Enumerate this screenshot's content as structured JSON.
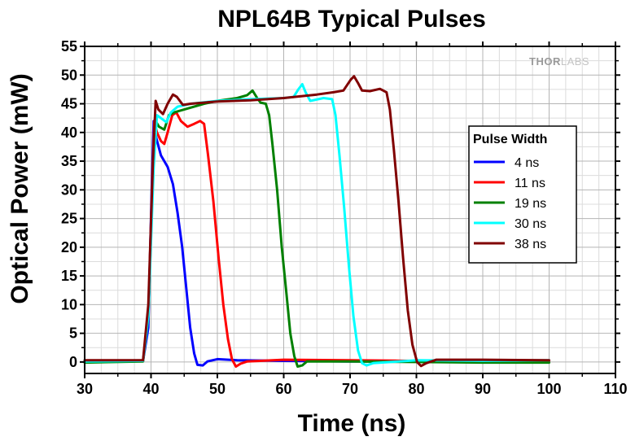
{
  "chart_data": {
    "type": "line",
    "title": "NPL64B Typical Pulses",
    "xlabel": "Time (ns)",
    "ylabel": "Optical Power (mW)",
    "xlim": [
      30,
      110
    ],
    "ylim": [
      -2,
      55
    ],
    "xticks": [
      30,
      40,
      50,
      60,
      70,
      80,
      90,
      100,
      110
    ],
    "yticks": [
      0,
      5,
      10,
      15,
      20,
      25,
      30,
      35,
      40,
      45,
      50,
      55
    ],
    "grid": true,
    "legend": {
      "title": "Pulse Width",
      "placement": "right"
    },
    "watermark": {
      "bold": "THOR",
      "light": "LABS"
    },
    "series": [
      {
        "name": "4 ns",
        "color": "#0000ff",
        "points": [
          [
            30,
            0.1
          ],
          [
            38.8,
            0.2
          ],
          [
            39.6,
            6
          ],
          [
            40.1,
            30
          ],
          [
            40.4,
            42
          ],
          [
            40.8,
            39
          ],
          [
            41.5,
            36
          ],
          [
            42.5,
            34
          ],
          [
            43.3,
            31
          ],
          [
            44,
            26
          ],
          [
            44.7,
            20
          ],
          [
            45.3,
            13
          ],
          [
            45.9,
            6
          ],
          [
            46.5,
            1.5
          ],
          [
            47,
            -0.5
          ],
          [
            47.8,
            -0.6
          ],
          [
            48.5,
            0.1
          ],
          [
            50,
            0.5
          ],
          [
            53,
            0.3
          ],
          [
            60,
            0.2
          ],
          [
            70,
            0.1
          ],
          [
            80,
            0.2
          ],
          [
            90,
            0.2
          ],
          [
            100,
            0.2
          ]
        ]
      },
      {
        "name": "11 ns",
        "color": "#ff0000",
        "points": [
          [
            30,
            0.0
          ],
          [
            38.8,
            0.2
          ],
          [
            39.6,
            8
          ],
          [
            40.2,
            32
          ],
          [
            40.5,
            42
          ],
          [
            40.9,
            40
          ],
          [
            41.5,
            38.5
          ],
          [
            42,
            38
          ],
          [
            42.5,
            40
          ],
          [
            43.2,
            43
          ],
          [
            43.8,
            43.5
          ],
          [
            44.5,
            42
          ],
          [
            45.5,
            41
          ],
          [
            46.5,
            41.5
          ],
          [
            47.4,
            42
          ],
          [
            48,
            41.5
          ],
          [
            48.6,
            36
          ],
          [
            49.4,
            28
          ],
          [
            50.2,
            18
          ],
          [
            50.9,
            10
          ],
          [
            51.6,
            4
          ],
          [
            52.2,
            0.5
          ],
          [
            52.8,
            -0.8
          ],
          [
            53.5,
            -0.3
          ],
          [
            54.5,
            0.1
          ],
          [
            60,
            0.4
          ],
          [
            70,
            0.3
          ],
          [
            80,
            0.2
          ],
          [
            90,
            0.2
          ],
          [
            100,
            0.2
          ]
        ]
      },
      {
        "name": "19 ns",
        "color": "#008000",
        "points": [
          [
            30,
            -0.1
          ],
          [
            38.8,
            0.1
          ],
          [
            39.6,
            8
          ],
          [
            40.3,
            33
          ],
          [
            40.7,
            42
          ],
          [
            41.2,
            41
          ],
          [
            42,
            40.5
          ],
          [
            42.7,
            43
          ],
          [
            43.5,
            43.5
          ],
          [
            45,
            44
          ],
          [
            48,
            45
          ],
          [
            50,
            45.5
          ],
          [
            53,
            46
          ],
          [
            54.5,
            46.5
          ],
          [
            55.3,
            47.3
          ],
          [
            56,
            46
          ],
          [
            56.5,
            45.2
          ],
          [
            57.3,
            45
          ],
          [
            57.8,
            43
          ],
          [
            58.3,
            38
          ],
          [
            59,
            30
          ],
          [
            59.7,
            20
          ],
          [
            60.4,
            12
          ],
          [
            61,
            5
          ],
          [
            61.6,
            1
          ],
          [
            62.1,
            -0.8
          ],
          [
            62.8,
            -0.6
          ],
          [
            63.5,
            0.1
          ],
          [
            70,
            0.1
          ],
          [
            80,
            0.0
          ],
          [
            90,
            -0.1
          ],
          [
            100,
            -0.1
          ]
        ]
      },
      {
        "name": "30 ns",
        "color": "#00ffff",
        "points": [
          [
            30,
            0.1
          ],
          [
            38.8,
            0.2
          ],
          [
            39.6,
            8
          ],
          [
            40.4,
            34
          ],
          [
            40.9,
            43
          ],
          [
            41.5,
            42.5
          ],
          [
            42.3,
            41.8
          ],
          [
            43,
            43.5
          ],
          [
            44,
            44.5
          ],
          [
            46,
            45
          ],
          [
            50,
            45.5
          ],
          [
            55,
            45.8
          ],
          [
            60,
            46
          ],
          [
            61.5,
            46.2
          ],
          [
            62.2,
            47.5
          ],
          [
            62.8,
            48.4
          ],
          [
            63.3,
            47
          ],
          [
            64,
            45.5
          ],
          [
            66,
            46
          ],
          [
            67.3,
            45.8
          ],
          [
            67.8,
            43
          ],
          [
            68.4,
            36
          ],
          [
            69.1,
            27
          ],
          [
            69.8,
            17
          ],
          [
            70.5,
            8
          ],
          [
            71.2,
            2
          ],
          [
            71.8,
            -0.2
          ],
          [
            72.5,
            -0.6
          ],
          [
            73.5,
            -0.2
          ],
          [
            80,
            0.3
          ],
          [
            90,
            0.2
          ],
          [
            100,
            0.3
          ]
        ]
      },
      {
        "name": "38 ns",
        "color": "#800000",
        "points": [
          [
            30,
            0.3
          ],
          [
            38.8,
            0.3
          ],
          [
            39.6,
            10
          ],
          [
            40.3,
            35
          ],
          [
            40.7,
            45.5
          ],
          [
            41.1,
            44
          ],
          [
            41.8,
            43.2
          ],
          [
            42.5,
            45
          ],
          [
            43.3,
            46.6
          ],
          [
            43.9,
            46.2
          ],
          [
            44.8,
            44.8
          ],
          [
            46,
            45
          ],
          [
            50,
            45.4
          ],
          [
            55,
            45.6
          ],
          [
            60,
            46
          ],
          [
            65,
            46.6
          ],
          [
            67.5,
            47
          ],
          [
            69,
            47.3
          ],
          [
            70.1,
            49.2
          ],
          [
            70.6,
            49.8
          ],
          [
            71.2,
            48.6
          ],
          [
            71.8,
            47.3
          ],
          [
            73,
            47.2
          ],
          [
            74.5,
            47.6
          ],
          [
            75.5,
            47
          ],
          [
            76,
            44
          ],
          [
            76.6,
            37
          ],
          [
            77.3,
            28
          ],
          [
            78,
            18
          ],
          [
            78.7,
            9
          ],
          [
            79.4,
            3
          ],
          [
            80.1,
            0
          ],
          [
            80.7,
            -0.7
          ],
          [
            81.5,
            -0.2
          ],
          [
            83,
            0.4
          ],
          [
            90,
            0.4
          ],
          [
            100,
            0.3
          ]
        ]
      }
    ]
  }
}
